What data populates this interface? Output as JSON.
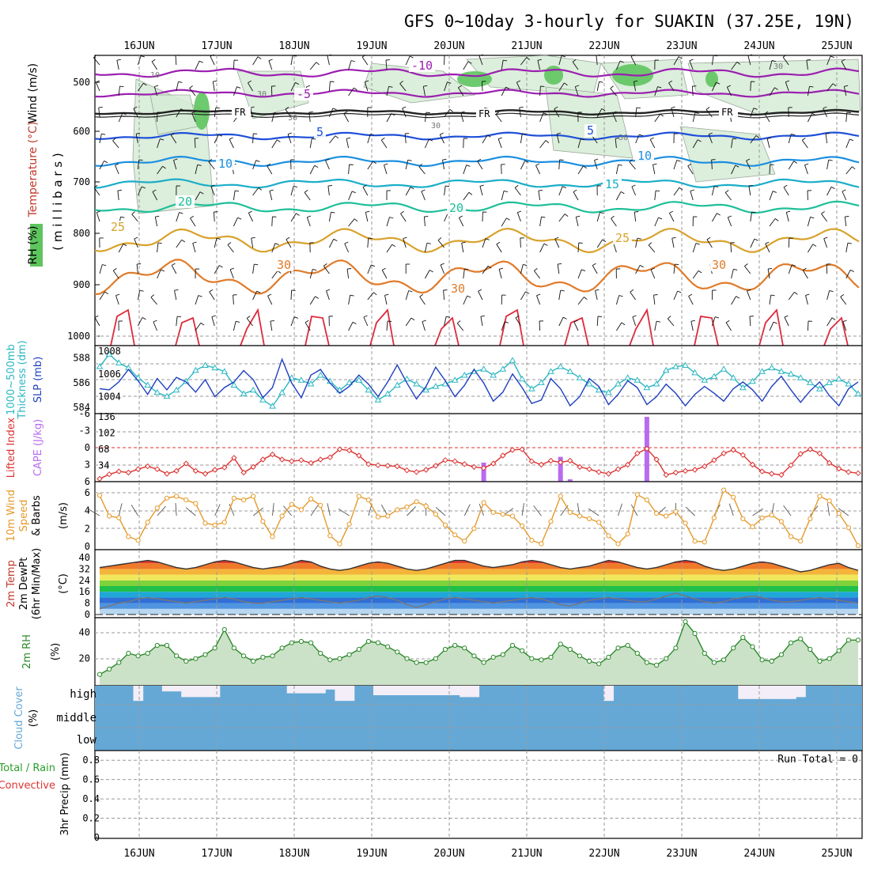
{
  "title": "GFS 0~10day 3-hourly for SUAKIN (37.25E, 19N)",
  "dates": [
    "16JUN",
    "17JUN",
    "18JUN",
    "19JUN",
    "20JUN",
    "21JUN",
    "22JUN",
    "23JUN",
    "24JUN",
    "25JUN"
  ],
  "colors": {
    "frame": "#000000",
    "grid": "#9a9a9a",
    "slp": "#1f3fbf",
    "thickness": "#2bb7c2",
    "lifted_index": "#dd3333",
    "cape": "#b86bef",
    "wind_speed": "#e59a2a",
    "rh_line": "#2a8a2a",
    "cloud": "#65a8d6"
  },
  "panels": {
    "upper": {
      "ylabel_wind": "Wind (m/s)",
      "ylabel_temp": "Temperature (°C)",
      "ylabel_rh": "RH (%)",
      "ylabel_units": "( m i l l i b a r s )",
      "ticks": [
        "500",
        "600",
        "700",
        "800",
        "900",
        "1000"
      ],
      "fr_label": "FR",
      "temp_labels": [
        "-10",
        "-5",
        "5",
        "5",
        "10",
        "10",
        "15",
        "20",
        "20",
        "25",
        "25",
        "30",
        "30",
        "30"
      ],
      "rh_labels": [
        "10",
        "30",
        "30",
        "30",
        "30",
        "30"
      ]
    },
    "slp": {
      "ylabel_slp": "SLP (mb)",
      "ylabel_thk": "1000~500mb",
      "ylabel_thk2": "Thickness (dm)",
      "left_ticks": [
        "588",
        "586",
        "584"
      ],
      "right_ticks": [
        "1008",
        "1006",
        "1004"
      ]
    },
    "cape": {
      "ylabel_li": "Lifted Index",
      "ylabel_cape": "CAPE (J/kg)",
      "left_ticks": [
        "-6",
        "-3",
        "0",
        "3",
        "6"
      ],
      "right_ticks": [
        "136",
        "102",
        "68",
        "34"
      ]
    },
    "wind": {
      "ylabel1": "10m Wind",
      "ylabel2": "Speed",
      "ylabel3": "& Barbs",
      "ylabel4": "(m/s)",
      "ticks": [
        "6",
        "4",
        "2",
        "0"
      ]
    },
    "temp2m": {
      "ylabel1": "2m Temp",
      "ylabel2": "2m DewPt",
      "ylabel3": "(6hr Min/Max)",
      "ylabel4": "(°C)",
      "ticks": [
        "40",
        "32",
        "24",
        "16",
        "8",
        "0"
      ]
    },
    "rh2m": {
      "ylabel1": "2m RH",
      "ylabel2": "(%)",
      "ticks": [
        "40",
        "20"
      ]
    },
    "cloud": {
      "ylabel1": "Cloud Cover",
      "ylabel2": "(%)",
      "ticks": [
        "high",
        "middle",
        "low"
      ]
    },
    "precip": {
      "ylabel1": "Total / Rain",
      "ylabel2": "Convective",
      "ylabel3": "3hr Precip (mm)",
      "ticks": [
        "0.8",
        "0.6",
        "0.4",
        "0.2",
        "0"
      ],
      "run_total": "Run Total = 0"
    }
  },
  "chart_data": [
    {
      "type": "line",
      "title": "SLP (mb) and 1000~500mb Thickness (dm)",
      "x_labels": [
        "16JUN",
        "17JUN",
        "18JUN",
        "19JUN",
        "20JUN",
        "21JUN",
        "22JUN",
        "23JUN",
        "24JUN",
        "25JUN"
      ],
      "series": [
        {
          "name": "SLP (mb)",
          "axis": "right",
          "ylim": [
            1002.5,
            1008.5
          ],
          "values": [
            1004.7,
            1004.6,
            1005.3,
            1006.4,
            1005.4,
            1004.2,
            1005.6,
            1004.6,
            1005.7,
            1005.3,
            1004.4,
            1005.5,
            1004.0,
            1004.8,
            1005.3,
            1006.3,
            1005.5,
            1003.9,
            1004.8,
            1007.3,
            1005.2,
            1003.9,
            1005.9,
            1006.4,
            1005.2,
            1004.3,
            1004.9,
            1005.9,
            1005.1,
            1004.0,
            1005.3,
            1006.8,
            1005.2,
            1003.8,
            1004.9,
            1006.6,
            1005.4,
            1004.0,
            1005.0,
            1006.4,
            1005.2,
            1003.6,
            1004.4,
            1006.0,
            1004.8,
            1003.4,
            1003.7,
            1005.6,
            1004.7,
            1003.2,
            1004.0,
            1005.6,
            1004.9,
            1003.3,
            1004.2,
            1005.4,
            1004.8,
            1003.3,
            1004.0,
            1005.1,
            1004.3,
            1003.2,
            1004.2,
            1004.9,
            1004.3,
            1003.6,
            1004.7,
            1005.3,
            1004.6,
            1003.6,
            1004.9,
            1005.8,
            1004.6,
            1003.5,
            1004.5,
            1005.3,
            1004.1,
            1003.2,
            1004.7,
            1005.3
          ]
        },
        {
          "name": "1000~500mb Thickness (dm)",
          "axis": "left",
          "ylim": [
            583.5,
            589.0
          ],
          "values": [
            587.3,
            588.3,
            587.6,
            587.2,
            586.4,
            585.8,
            585.2,
            584.9,
            585.4,
            586.1,
            587.0,
            587.4,
            587.2,
            586.9,
            585.8,
            585.1,
            585.4,
            584.6,
            584.1,
            585.2,
            586.4,
            586.2,
            585.9,
            586.6,
            586.1,
            585.4,
            586.0,
            586.2,
            585.4,
            584.6,
            585.1,
            585.8,
            586.3,
            585.9,
            585.4,
            585.7,
            585.9,
            586.2,
            586.6,
            586.9,
            587.1,
            586.6,
            587.1,
            587.8,
            586.3,
            585.5,
            586.0,
            586.9,
            587.3,
            586.9,
            586.4,
            585.9,
            585.4,
            585.2,
            585.9,
            586.4,
            586.2,
            585.6,
            585.9,
            587.0,
            587.3,
            587.4,
            586.8,
            586.2,
            586.5,
            587.1,
            586.4,
            585.6,
            586.1,
            586.9,
            587.2,
            586.9,
            586.7,
            586.4,
            586.0,
            585.5,
            586.0,
            586.3,
            585.9,
            585.1
          ]
        }
      ]
    },
    {
      "type": "line",
      "title": "Lifted Index and CAPE (J/kg)",
      "series": [
        {
          "name": "Lifted Index",
          "axis": "left",
          "ylim": [
            6,
            -6
          ],
          "values": [
            5.5,
            4.7,
            4.2,
            4.4,
            3.8,
            3.3,
            3.8,
            4.6,
            4.1,
            2.8,
            4.1,
            4.6,
            3.9,
            3.5,
            1.8,
            4.4,
            3.4,
            2.1,
            1.2,
            2.1,
            2.4,
            2.2,
            2.7,
            2.1,
            1.7,
            0.3,
            0.5,
            1.4,
            2.9,
            3.1,
            3.2,
            3.3,
            4.0,
            4.3,
            3.9,
            3.2,
            2.2,
            2.4,
            2.9,
            3.4,
            3.6,
            2.8,
            1.4,
            0.4,
            0.3,
            2.4,
            3.0,
            2.3,
            2.6,
            2.3,
            3.4,
            3.8,
            4.3,
            4.6,
            3.8,
            3.0,
            1.0,
            0.2,
            2.1,
            4.8,
            4.4,
            4.1,
            3.9,
            3.3,
            2.2,
            1.0,
            0.4,
            1.3,
            3.0,
            4.2,
            4.6,
            4.8,
            3.1,
            1.1,
            0.3,
            1.0,
            2.7,
            3.7,
            4.3,
            4.5
          ]
        },
        {
          "name": "CAPE (J/kg)",
          "axis": "right",
          "ylim": [
            0,
            136
          ],
          "bars_at_index": [
            40,
            48,
            49,
            57
          ],
          "bars_values": [
            40,
            52,
            5,
            136
          ]
        }
      ]
    },
    {
      "type": "line",
      "title": "10m Wind Speed (m/s)",
      "ylim": [
        0,
        6.6
      ],
      "values": [
        5.7,
        3.4,
        3.2,
        1.1,
        0.7,
        2.7,
        4.3,
        5.4,
        5.6,
        5.2,
        4.8,
        2.6,
        2.4,
        2.7,
        5.4,
        5.2,
        5.6,
        2.8,
        1.1,
        3.4,
        4.7,
        4.1,
        5.3,
        4.6,
        1.2,
        0.3,
        2.5,
        5.6,
        5.2,
        3.3,
        3.4,
        4.1,
        4.4,
        5.0,
        4.5,
        3.6,
        2.4,
        1.3,
        0.6,
        2.0,
        4.9,
        3.8,
        3.6,
        3.4,
        2.3,
        0.7,
        0.3,
        2.8,
        5.6,
        3.8,
        3.4,
        3.1,
        2.7,
        1.2,
        0.3,
        1.4,
        5.8,
        5.2,
        3.7,
        3.4,
        3.9,
        2.6,
        0.6,
        0.5,
        3.2,
        6.3,
        5.5,
        3.1,
        2.2,
        3.2,
        3.5,
        2.8,
        1.1,
        0.6,
        3.1,
        5.6,
        5.1,
        3.7,
        2.1,
        0.1
      ]
    },
    {
      "type": "area",
      "title": "2m Temp and 2m DewPt (°C)",
      "ylim": [
        0,
        42
      ],
      "series": [
        {
          "name": "2m Temp",
          "values": [
            33,
            34,
            35,
            36,
            37,
            38,
            37,
            35,
            33,
            32,
            33,
            35,
            37,
            38,
            37,
            35,
            33,
            32,
            33,
            34,
            36,
            38,
            37,
            34,
            32,
            31,
            32,
            34,
            36,
            37,
            36,
            34,
            32,
            31,
            32,
            34,
            36,
            38,
            38,
            36,
            34,
            33,
            34,
            35,
            37,
            38,
            37,
            35,
            33,
            32,
            33,
            34,
            36,
            38,
            37,
            35,
            33,
            32,
            33,
            35,
            37,
            38,
            37,
            34,
            32,
            31,
            32,
            34,
            36,
            37,
            36,
            34,
            32,
            30,
            31,
            33,
            35,
            36,
            33,
            31
          ]
        },
        {
          "name": "2m DewPt",
          "values": [
            4,
            6,
            8,
            9,
            11,
            12,
            11,
            10,
            9,
            8,
            9,
            10,
            11,
            12,
            11,
            9,
            8,
            8,
            9,
            10,
            11,
            12,
            11,
            10,
            9,
            8,
            9,
            10,
            12,
            13,
            12,
            10,
            7,
            5,
            7,
            9,
            11,
            12,
            11,
            10,
            9,
            8,
            9,
            10,
            11,
            12,
            11,
            9,
            7,
            6,
            8,
            10,
            11,
            12,
            11,
            10,
            9,
            9,
            11,
            13,
            15,
            13,
            11,
            9,
            8,
            9,
            11,
            12,
            13,
            12,
            10,
            9,
            9,
            10,
            11,
            12,
            11,
            10,
            9,
            8
          ]
        }
      ]
    },
    {
      "type": "area",
      "title": "2m RH (%)",
      "ylim": [
        0,
        55
      ],
      "values": [
        8,
        12,
        17,
        24,
        22,
        24,
        30,
        30,
        22,
        18,
        20,
        23,
        28,
        42,
        28,
        22,
        18,
        21,
        22,
        28,
        32,
        33,
        32,
        24,
        19,
        20,
        23,
        27,
        33,
        32,
        29,
        25,
        20,
        17,
        17,
        20,
        27,
        30,
        28,
        22,
        17,
        21,
        23,
        30,
        26,
        20,
        19,
        21,
        31,
        27,
        22,
        18,
        16,
        21,
        28,
        30,
        24,
        17,
        15,
        20,
        28,
        48,
        39,
        24,
        17,
        19,
        28,
        36,
        29,
        19,
        18,
        23,
        32,
        35,
        27,
        18,
        20,
        26,
        34,
        34
      ]
    },
    {
      "type": "bar",
      "title": "Cloud Cover (%)",
      "layers": [
        "high",
        "middle",
        "low"
      ],
      "high_values": [
        100,
        100,
        100,
        100,
        20,
        100,
        100,
        70,
        70,
        40,
        40,
        40,
        40,
        100,
        100,
        100,
        100,
        100,
        100,
        100,
        60,
        60,
        60,
        60,
        80,
        20,
        20,
        100,
        100,
        50,
        50,
        50,
        50,
        50,
        50,
        50,
        50,
        50,
        40,
        40,
        100,
        100,
        100,
        100,
        100,
        100,
        100,
        100,
        100,
        100,
        100,
        100,
        100,
        20,
        100,
        100,
        100,
        100,
        100,
        100,
        100,
        100,
        100,
        100,
        100,
        100,
        100,
        30,
        30,
        30,
        30,
        30,
        30,
        40,
        100,
        100,
        100,
        100,
        100,
        100
      ],
      "middle_values": [
        0,
        0,
        0,
        0,
        0,
        0,
        0,
        0,
        0,
        0,
        0,
        0,
        0,
        0,
        0,
        0,
        0,
        0,
        0,
        0,
        0,
        0,
        0,
        0,
        0,
        0,
        0,
        0,
        0,
        0,
        0,
        0,
        0,
        0,
        0,
        0,
        0,
        0,
        0,
        0,
        0,
        0,
        0,
        0,
        0,
        0,
        0,
        0,
        0,
        0,
        0,
        0,
        0,
        0,
        0,
        0,
        0,
        0,
        0,
        0,
        0,
        0,
        0,
        0,
        0,
        0,
        0,
        0,
        0,
        0,
        0,
        0,
        0,
        0,
        0,
        0,
        0,
        0,
        0,
        0
      ],
      "low_values": [
        0,
        0,
        0,
        0,
        0,
        0,
        0,
        0,
        0,
        0,
        0,
        0,
        0,
        0,
        0,
        0,
        0,
        0,
        0,
        0,
        0,
        0,
        0,
        0,
        0,
        0,
        0,
        0,
        0,
        0,
        0,
        0,
        0,
        0,
        0,
        0,
        0,
        0,
        0,
        0,
        0,
        0,
        0,
        0,
        0,
        0,
        0,
        0,
        0,
        0,
        0,
        0,
        0,
        0,
        0,
        0,
        0,
        0,
        0,
        0,
        0,
        0,
        0,
        0,
        0,
        0,
        0,
        0,
        0,
        0,
        0,
        0,
        0,
        0,
        0,
        0,
        0,
        0,
        0,
        0
      ]
    },
    {
      "type": "bar",
      "title": "3hr Precip (mm)",
      "ylim": [
        0,
        0.9
      ],
      "values": [
        0,
        0,
        0,
        0,
        0,
        0,
        0,
        0,
        0,
        0,
        0,
        0,
        0,
        0,
        0,
        0,
        0,
        0,
        0,
        0,
        0,
        0,
        0,
        0,
        0,
        0,
        0,
        0,
        0,
        0,
        0,
        0,
        0,
        0,
        0,
        0,
        0,
        0,
        0,
        0,
        0,
        0,
        0,
        0,
        0,
        0,
        0,
        0,
        0,
        0,
        0,
        0,
        0,
        0,
        0,
        0,
        0,
        0,
        0,
        0,
        0,
        0,
        0,
        0,
        0,
        0,
        0,
        0,
        0,
        0,
        0,
        0,
        0,
        0,
        0,
        0,
        0,
        0,
        0,
        0
      ]
    }
  ]
}
